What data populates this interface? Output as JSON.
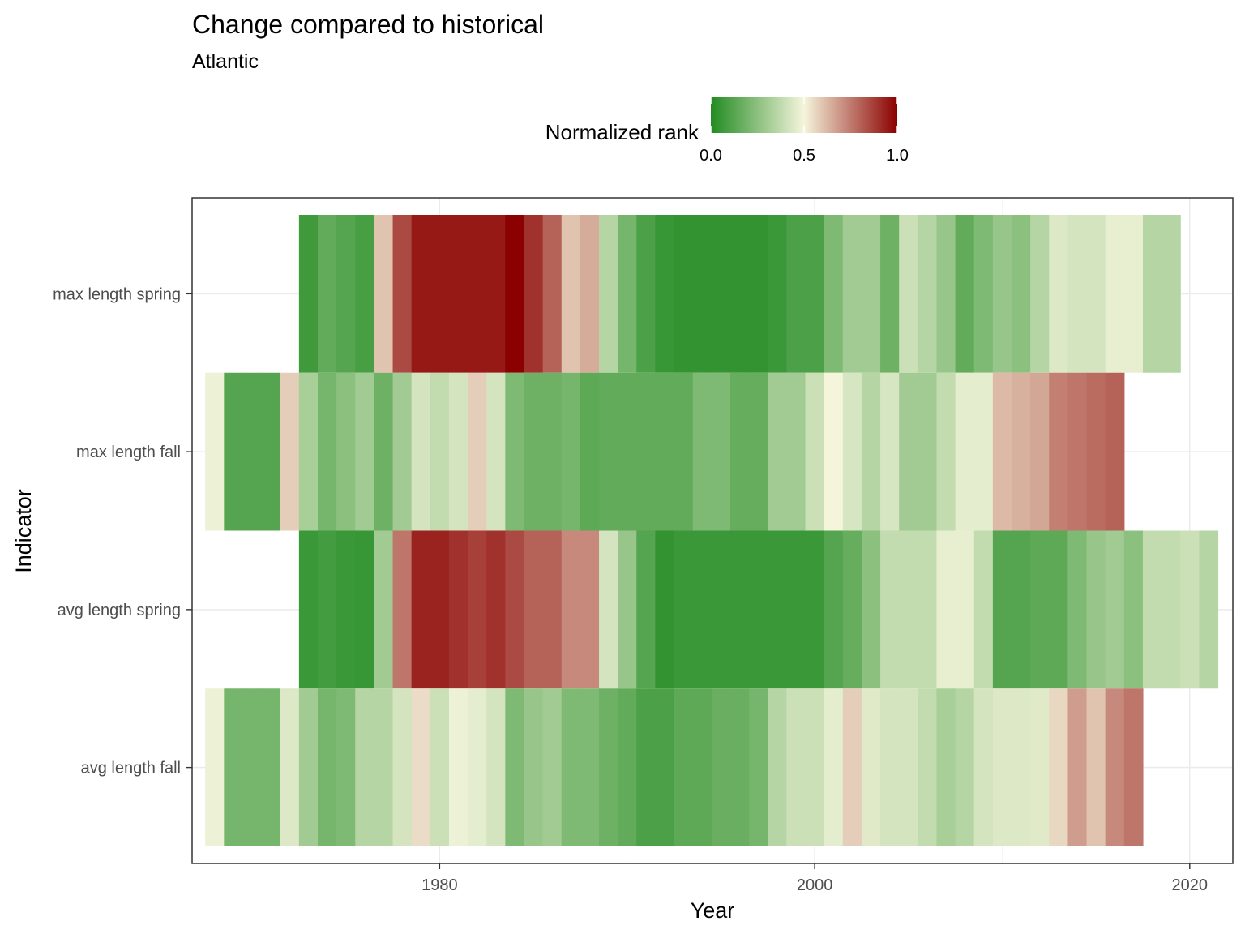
{
  "chart_data": {
    "type": "heatmap",
    "title": "Change compared to historical",
    "subtitle": "Atlantic",
    "xlabel": "Year",
    "ylabel": "Indicator",
    "xlim": [
      1966.8,
      2022.3
    ],
    "x_ticks": [
      1980,
      2000,
      2020
    ],
    "grid": true,
    "legend": {
      "title": "Normalized rank",
      "position": "top",
      "ticks": [
        0.0,
        0.5,
        1.0
      ],
      "tick_labels": [
        "0.0",
        "0.5",
        "1.0"
      ],
      "colors": {
        "low": "#228b22",
        "mid": "#f5f5dc",
        "high": "#8b0000"
      }
    },
    "indicators": [
      "max length spring",
      "max length fall",
      "avg length spring",
      "avg length fall"
    ],
    "series": [
      {
        "name": "max length spring",
        "start_year": 1973,
        "values": [
          0.07,
          0.15,
          0.12,
          0.09,
          0.6,
          0.85,
          0.95,
          0.95,
          0.95,
          0.95,
          0.95,
          1.0,
          0.9,
          0.8,
          0.6,
          0.65,
          0.35,
          0.2,
          0.1,
          0.05,
          0.04,
          0.04,
          0.04,
          0.04,
          0.04,
          0.06,
          0.1,
          0.1,
          0.22,
          0.3,
          0.3,
          0.18,
          0.4,
          0.35,
          0.28,
          0.15,
          0.22,
          0.28,
          0.25,
          0.35,
          0.44,
          0.42,
          0.42,
          0.47,
          0.47,
          0.35,
          0.35
        ]
      },
      {
        "name": "max length fall",
        "start_year": 1968,
        "values": [
          0.48,
          0.12,
          0.12,
          0.12,
          0.58,
          0.32,
          0.2,
          0.25,
          0.3,
          0.18,
          0.3,
          0.42,
          0.38,
          0.42,
          0.58,
          0.42,
          0.22,
          0.18,
          0.18,
          0.2,
          0.14,
          0.15,
          0.15,
          0.15,
          0.15,
          0.15,
          0.22,
          0.22,
          0.16,
          0.16,
          0.3,
          0.3,
          0.4,
          0.5,
          0.43,
          0.35,
          0.43,
          0.3,
          0.3,
          0.38,
          0.46,
          0.46,
          0.62,
          0.64,
          0.66,
          0.74,
          0.76,
          0.78,
          0.8
        ]
      },
      {
        "name": "avg length spring",
        "start_year": 1973,
        "values": [
          0.06,
          0.08,
          0.06,
          0.05,
          0.3,
          0.76,
          0.93,
          0.93,
          0.9,
          0.87,
          0.9,
          0.85,
          0.8,
          0.8,
          0.72,
          0.72,
          0.42,
          0.28,
          0.12,
          0.04,
          0.06,
          0.06,
          0.06,
          0.06,
          0.06,
          0.06,
          0.06,
          0.06,
          0.12,
          0.16,
          0.25,
          0.38,
          0.38,
          0.38,
          0.47,
          0.47,
          0.38,
          0.12,
          0.12,
          0.14,
          0.14,
          0.22,
          0.28,
          0.3,
          0.25,
          0.38,
          0.38,
          0.4,
          0.35
        ]
      },
      {
        "name": "avg length fall",
        "start_year": 1968,
        "values": [
          0.48,
          0.2,
          0.2,
          0.2,
          0.44,
          0.3,
          0.2,
          0.22,
          0.35,
          0.35,
          0.42,
          0.55,
          0.4,
          0.48,
          0.46,
          0.42,
          0.22,
          0.28,
          0.3,
          0.22,
          0.22,
          0.18,
          0.15,
          0.1,
          0.1,
          0.14,
          0.14,
          0.17,
          0.17,
          0.2,
          0.35,
          0.4,
          0.4,
          0.46,
          0.58,
          0.45,
          0.42,
          0.42,
          0.38,
          0.32,
          0.35,
          0.42,
          0.44,
          0.44,
          0.45,
          0.56,
          0.68,
          0.6,
          0.72,
          0.76
        ]
      }
    ]
  }
}
